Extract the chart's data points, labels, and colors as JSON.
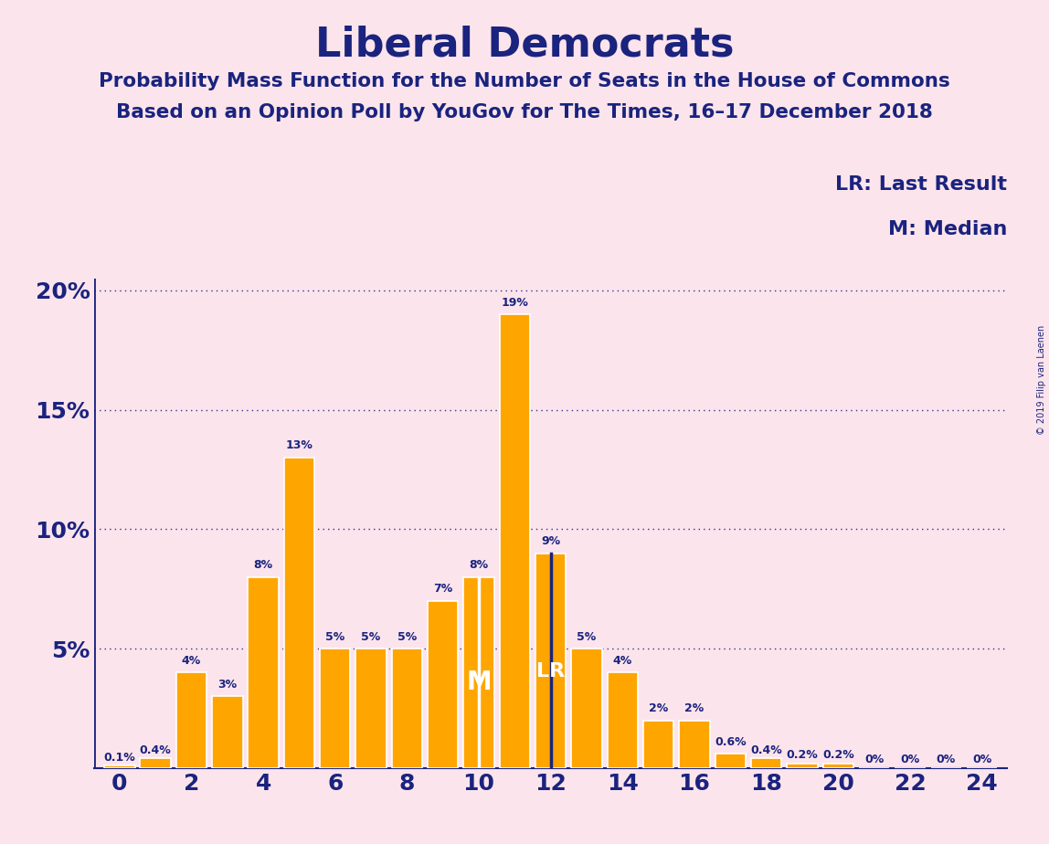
{
  "title": "Liberal Democrats",
  "subtitle1": "Probability Mass Function for the Number of Seats in the House of Commons",
  "subtitle2": "Based on an Opinion Poll by YouGov for The Times, 16–17 December 2018",
  "background_color": "#fce4ec",
  "bar_color": "#FFA500",
  "title_color": "#1a237e",
  "text_color": "#1a237e",
  "bar_edge_color": "#ffffff",
  "seats": [
    0,
    1,
    2,
    3,
    4,
    5,
    6,
    7,
    8,
    9,
    10,
    11,
    12,
    13,
    14,
    15,
    16,
    17,
    18,
    19,
    20,
    21,
    22,
    23,
    24
  ],
  "values": [
    0.1,
    0.4,
    4,
    3,
    8,
    13,
    5,
    5,
    5,
    7,
    8,
    19,
    9,
    5,
    4,
    2,
    2,
    0.6,
    0.4,
    0.2,
    0.2,
    0,
    0,
    0,
    0
  ],
  "labels": [
    "0.1%",
    "0.4%",
    "4%",
    "3%",
    "8%",
    "13%",
    "5%",
    "5%",
    "5%",
    "7%",
    "8%",
    "19%",
    "9%",
    "5%",
    "4%",
    "2%",
    "2%",
    "0.6%",
    "0.4%",
    "0.2%",
    "0.2%",
    "0%",
    "0%",
    "0%",
    "0%"
  ],
  "median_seat": 10,
  "last_result_seat": 12,
  "legend_lr": "LR: Last Result",
  "legend_m": "M: Median",
  "copyright": "© 2019 Filip van Laenen",
  "ylim_max": 20.5,
  "ytick_vals": [
    5,
    10,
    15,
    20
  ],
  "ytick_labels": [
    "5%",
    "10%",
    "15%",
    "20%"
  ],
  "xticks": [
    0,
    2,
    4,
    6,
    8,
    10,
    12,
    14,
    16,
    18,
    20,
    22,
    24
  ],
  "grid_color": "#1a237e",
  "bar_width": 0.85
}
